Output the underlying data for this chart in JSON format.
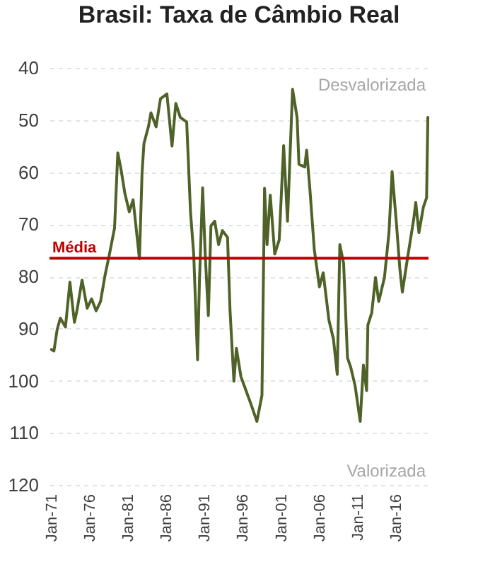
{
  "chart_data": {
    "type": "line",
    "title": "Brasil: Taxa de Câmbio Real",
    "x": [
      "1971-01",
      "1971-05",
      "1971-10",
      "1972-03",
      "1972-11",
      "1973-06",
      "1974-01",
      "1974-05",
      "1975-01",
      "1975-09",
      "1976-04",
      "1976-11",
      "1977-06",
      "1978-01",
      "1978-08",
      "1979-04",
      "1979-09",
      "1980-02",
      "1980-08",
      "1981-03",
      "1981-09",
      "1982-07",
      "1982-11",
      "1983-02",
      "1983-09",
      "1984-01",
      "1984-09",
      "1985-04",
      "1986-02",
      "1986-10",
      "1987-04",
      "1987-11",
      "1988-09",
      "1989-03",
      "1989-08",
      "1990-02",
      "1990-05",
      "1990-10",
      "1991-02",
      "1991-07",
      "1991-11",
      "1992-05",
      "1992-11",
      "1993-05",
      "1994-01",
      "1994-05",
      "1994-11",
      "1995-03",
      "1995-10",
      "1996-06",
      "1997-02",
      "1997-11",
      "1998-07",
      "1998-11",
      "1999-03",
      "1999-08",
      "2000-03",
      "2000-10",
      "2001-05",
      "2001-11",
      "2002-07",
      "2003-02",
      "2003-05",
      "2004-02",
      "2004-05",
      "2004-10",
      "2005-05",
      "2006-01",
      "2006-07",
      "2007-04",
      "2007-11",
      "2008-05",
      "2008-09",
      "2009-03",
      "2009-09",
      "2010-02",
      "2010-09",
      "2011-05",
      "2011-10",
      "2012-03",
      "2012-05",
      "2012-11",
      "2013-05",
      "2013-10",
      "2014-07",
      "2015-02",
      "2015-07",
      "2016-02",
      "2016-07",
      "2016-11",
      "2017-07",
      "2018-05",
      "2018-08",
      "2019-01",
      "2019-08",
      "2020-01",
      "2020-03"
    ],
    "series": [
      {
        "color": "#4f6228",
        "values": [
          94,
          94.3,
          90.2,
          88,
          89.7,
          81.1,
          88.8,
          86.6,
          80.7,
          86.1,
          84.3,
          86.6,
          84.8,
          79.8,
          75.7,
          70.7,
          56.3,
          59.4,
          64,
          67.6,
          65.3,
          76.6,
          60.3,
          54.5,
          51.3,
          48.6,
          51.3,
          45.9,
          45,
          55,
          46.8,
          49.5,
          50.4,
          67.6,
          75.7,
          96,
          81.1,
          63,
          75.7,
          87.5,
          70.3,
          69.4,
          73.9,
          71.2,
          72.5,
          86.6,
          100.1,
          93.8,
          99.2,
          101.9,
          104.6,
          107.8,
          102.8,
          63.1,
          73.9,
          64.4,
          75.7,
          73,
          54.9,
          69.4,
          44.1,
          49.5,
          58.5,
          59,
          55.8,
          63.1,
          74.8,
          82,
          79.3,
          88.4,
          92,
          98.8,
          73.9,
          77.5,
          95.6,
          97.4,
          101,
          107.8,
          97,
          101.9,
          89.3,
          87,
          80.2,
          84.8,
          80.2,
          71.6,
          59.9,
          70.3,
          78.4,
          83,
          76.6,
          68.9,
          65.8,
          71.6,
          66.7,
          64.9,
          49.5
        ]
      }
    ],
    "xlim": [
      "1970-10",
      "2020-04"
    ],
    "xticks": [
      {
        "value": "1971-01",
        "label": "Jan-71"
      },
      {
        "value": "1976-01",
        "label": "Jan-76"
      },
      {
        "value": "1981-01",
        "label": "Jan-81"
      },
      {
        "value": "1986-01",
        "label": "Jan-86"
      },
      {
        "value": "1991-01",
        "label": "Jan-91"
      },
      {
        "value": "1996-01",
        "label": "Jan-96"
      },
      {
        "value": "2001-01",
        "label": "Jan-01"
      },
      {
        "value": "2006-01",
        "label": "Jan-06"
      },
      {
        "value": "2011-01",
        "label": "Jan-11"
      },
      {
        "value": "2016-01",
        "label": "Jan-16"
      }
    ],
    "ylim": [
      120,
      40
    ],
    "yticks": [
      40,
      50,
      60,
      70,
      80,
      90,
      100,
      110,
      120
    ],
    "grid": "y",
    "ref_lines": [
      {
        "axis": "y",
        "value": 76.5,
        "label": "Média",
        "color": "#c00000"
      }
    ],
    "annotations": [
      "Desvalorizada",
      "Valorizada"
    ]
  }
}
